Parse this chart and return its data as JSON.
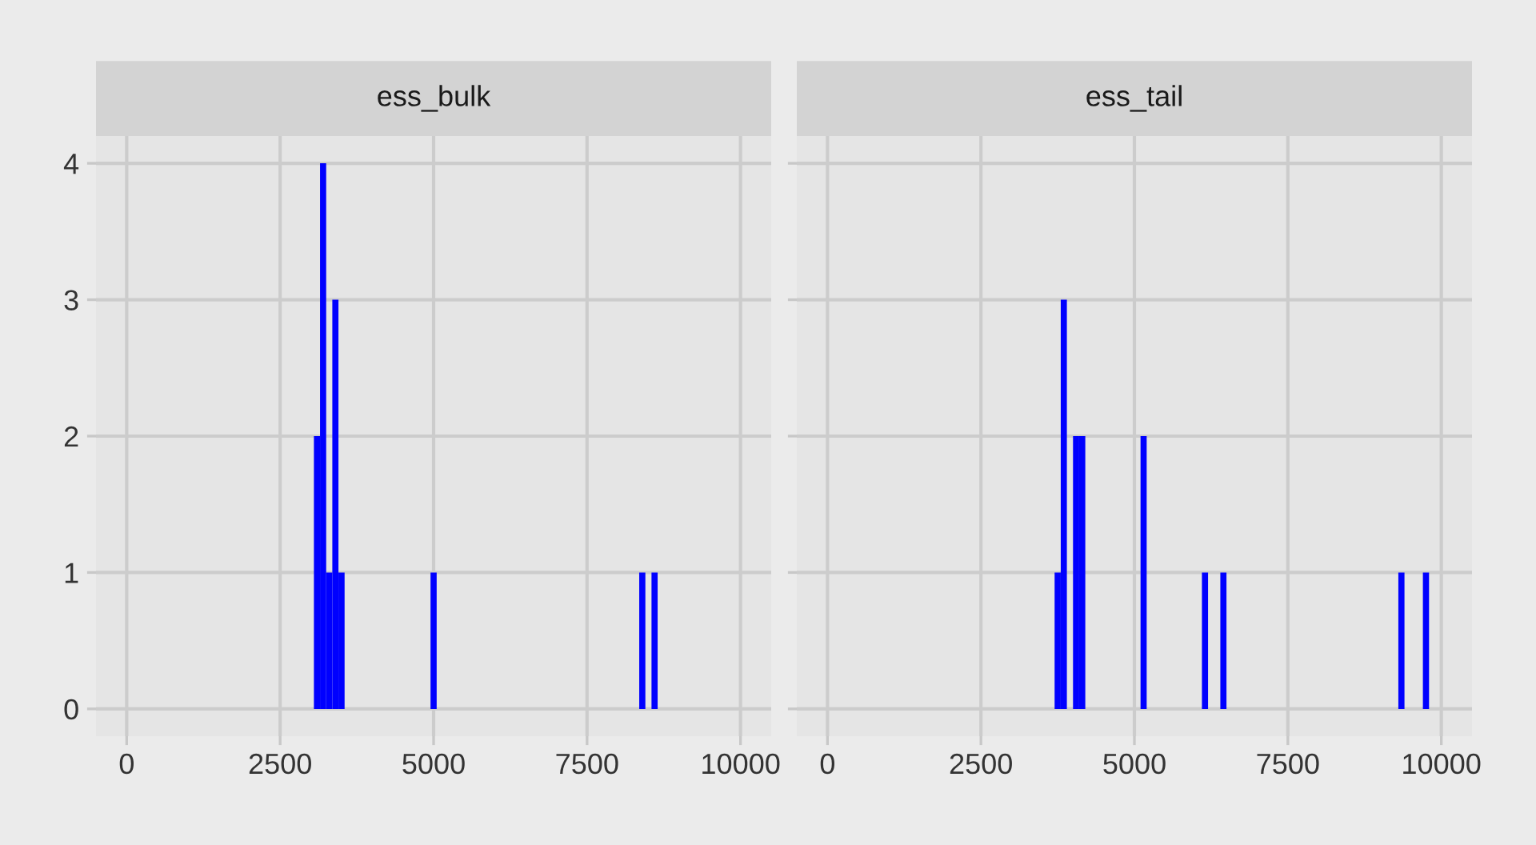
{
  "chart_data": [
    {
      "type": "histogram",
      "title": "ess_bulk",
      "color": "#0000ff",
      "bins": [
        3050,
        3150,
        3250,
        3350,
        3450,
        3550,
        3650,
        3750,
        3850,
        3950,
        4050,
        4150,
        4250,
        4350,
        4450,
        4550,
        4650,
        4750,
        4850,
        4950,
        5050,
        5150,
        5250,
        5350,
        5450,
        5550,
        5650,
        5750,
        5850,
        5950,
        6050,
        6150,
        6250,
        6350,
        6450,
        6550,
        6650,
        6750,
        6850,
        6950,
        7050,
        7150,
        7250,
        7350,
        7450,
        7550,
        7650,
        7750,
        7850,
        7950,
        8050,
        8150,
        8250,
        8350,
        8450,
        8550,
        8650
      ],
      "values": [
        2,
        4,
        1,
        3,
        1,
        0,
        0,
        0,
        0,
        0,
        0,
        0,
        0,
        0,
        0,
        0,
        0,
        0,
        0,
        1,
        0,
        0,
        0,
        0,
        0,
        0,
        0,
        0,
        0,
        0,
        0,
        0,
        0,
        0,
        0,
        0,
        0,
        0,
        0,
        0,
        0,
        0,
        0,
        0,
        0,
        0,
        0,
        0,
        0,
        0,
        0,
        0,
        0,
        1,
        0,
        1
      ],
      "xlim": [
        -500,
        10500
      ],
      "xticks": [
        0,
        2500,
        5000,
        7500,
        10000
      ],
      "ylim": [
        -0.2,
        4.2
      ],
      "yticks": [
        0,
        1,
        2,
        3,
        4
      ],
      "grid": true
    },
    {
      "type": "histogram",
      "title": "ess_tail",
      "color": "#0000ff",
      "bins": [
        3700,
        3800,
        3900,
        4000,
        4100,
        4200,
        4300,
        4400,
        4500,
        4600,
        4700,
        4800,
        4900,
        5000,
        5100,
        5200,
        5300,
        5400,
        5500,
        5600,
        5700,
        5800,
        5900,
        6000,
        6100,
        6200,
        6300,
        6400,
        6500,
        6600,
        6700,
        6800,
        6900,
        7000,
        7100,
        7200,
        7300,
        7400,
        7500,
        7600,
        7700,
        7800,
        7900,
        8000,
        8100,
        8200,
        8300,
        8400,
        8500,
        8600,
        8700,
        8800,
        8900,
        9000,
        9100,
        9200,
        9300,
        9400,
        9500,
        9600,
        9700,
        9800
      ],
      "values": [
        1,
        3,
        0,
        2,
        2,
        0,
        0,
        0,
        0,
        0,
        0,
        0,
        0,
        0,
        2,
        0,
        0,
        0,
        0,
        0,
        0,
        0,
        0,
        0,
        1,
        0,
        0,
        1,
        0,
        0,
        0,
        0,
        0,
        0,
        0,
        0,
        0,
        0,
        0,
        0,
        0,
        0,
        0,
        0,
        0,
        0,
        0,
        0,
        0,
        0,
        0,
        0,
        0,
        0,
        0,
        0,
        1,
        0,
        0,
        0,
        1
      ],
      "xlim": [
        -500,
        10500
      ],
      "xticks": [
        0,
        2500,
        5000,
        7500,
        10000
      ],
      "ylim": [
        -0.2,
        4.2
      ],
      "yticks": [
        0,
        1,
        2,
        3,
        4
      ],
      "grid": true,
      "tick_labels": "x"
    }
  ]
}
